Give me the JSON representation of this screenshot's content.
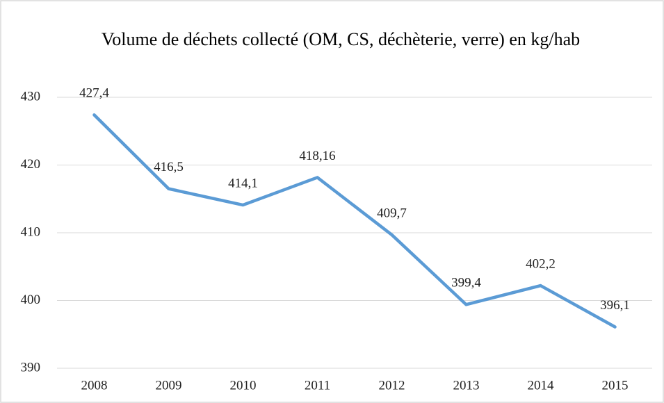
{
  "chart_data": {
    "type": "line",
    "title": "Volume de déchets collecté (OM, CS, déchèterie, verre) en kg/hab",
    "categories": [
      "2008",
      "2009",
      "2010",
      "2011",
      "2012",
      "2013",
      "2014",
      "2015"
    ],
    "values": [
      427.4,
      416.5,
      414.1,
      418.16,
      409.7,
      399.4,
      402.2,
      396.1
    ],
    "value_labels": [
      "427,4",
      "416,5",
      "414,1",
      "418,16",
      "409,7",
      "399,4",
      "402,2",
      "396,1"
    ],
    "color": "#5b9bd5",
    "ylim": [
      390,
      430
    ],
    "yticks": [
      390,
      400,
      410,
      420,
      430
    ],
    "grid": true
  }
}
